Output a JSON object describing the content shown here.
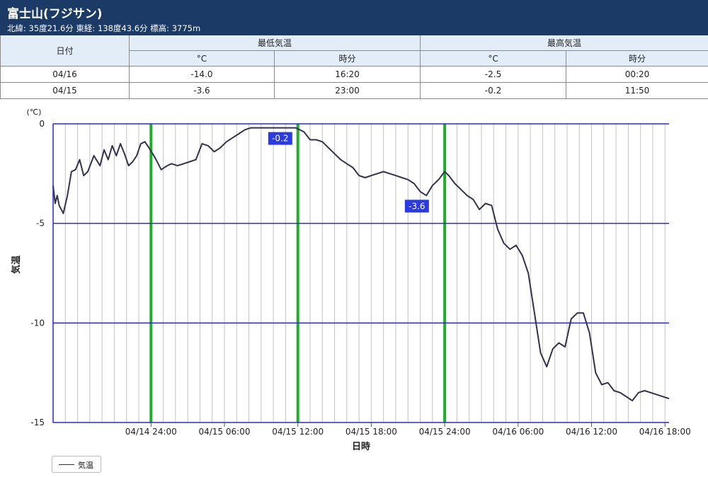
{
  "header": {
    "title": "富士山(フジサン)",
    "subtitle": "北緯: 35度21.6分 東経: 138度43.6分 標高: 3775m"
  },
  "table": {
    "date_header": "日付",
    "min_header": "最低気温",
    "max_header": "最高気温",
    "temp_sub": "°C",
    "time_sub": "時分",
    "rows": [
      {
        "date": "04/16",
        "min_temp": "-14.0",
        "min_time": "16:20",
        "max_temp": "-2.5",
        "max_time": "00:20"
      },
      {
        "date": "04/15",
        "min_temp": "-3.6",
        "min_time": "23:00",
        "max_temp": "-0.2",
        "max_time": "11:50"
      }
    ]
  },
  "chart_data": {
    "type": "line",
    "xlabel": "日時",
    "ylabel": "気温",
    "yunit": "(℃)",
    "ylim": [
      -15,
      0
    ],
    "yticks": [
      0,
      -5,
      -10,
      -15
    ],
    "xlim": [
      "04/14 16:00",
      "04/16 18:20"
    ],
    "xticks": [
      "04/14 24:00",
      "04/15 06:00",
      "04/15 12:00",
      "04/15 18:00",
      "04/15 24:00",
      "04/16 06:00",
      "04/16 12:00",
      "04/16 18:00"
    ],
    "grid": true,
    "legend": "bottom-left",
    "day_boundaries": [
      "04/14 24:00",
      "04/15 12:00",
      "04/15 24:00"
    ],
    "annotations": [
      {
        "x": "04/15 11:50",
        "y": -0.2,
        "label": "-0.2"
      },
      {
        "x": "04/15 23:00",
        "y": -3.6,
        "label": "-3.6"
      }
    ],
    "colors": {
      "line": "#33334d",
      "axis": "#2b2bc4",
      "marker": "#1fae2a",
      "label_bg": "#2b3be0"
    },
    "series": [
      {
        "name": "気温",
        "x": [
          "04/14 16:00",
          "04/14 16:10",
          "04/14 16:20",
          "04/14 16:30",
          "04/14 16:50",
          "04/14 17:10",
          "04/14 17:30",
          "04/14 17:50",
          "04/14 18:10",
          "04/14 18:30",
          "04/14 18:50",
          "04/14 19:20",
          "04/14 19:50",
          "04/14 20:10",
          "04/14 20:30",
          "04/14 20:50",
          "04/14 21:10",
          "04/14 21:30",
          "04/14 21:50",
          "04/14 22:10",
          "04/14 22:30",
          "04/14 22:50",
          "04/14 23:10",
          "04/14 23:30",
          "04/14 23:50",
          "04/15 00:20",
          "04/15 00:50",
          "04/15 01:20",
          "04/15 01:40",
          "04/15 02:10",
          "04/15 02:40",
          "04/15 03:10",
          "04/15 03:40",
          "04/15 04:10",
          "04/15 04:40",
          "04/15 05:10",
          "04/15 05:40",
          "04/15 06:10",
          "04/15 06:40",
          "04/15 07:10",
          "04/15 07:40",
          "04/15 08:10",
          "04/15 08:40",
          "04/15 09:10",
          "04/15 09:40",
          "04/15 10:10",
          "04/15 10:40",
          "04/15 11:10",
          "04/15 11:50",
          "04/15 12:30",
          "04/15 13:00",
          "04/15 13:30",
          "04/15 14:00",
          "04/15 14:30",
          "04/15 15:00",
          "04/15 15:30",
          "04/15 16:00",
          "04/15 16:30",
          "04/15 17:00",
          "04/15 17:30",
          "04/15 18:00",
          "04/15 18:30",
          "04/15 19:00",
          "04/15 19:30",
          "04/15 20:00",
          "04/15 20:30",
          "04/15 21:00",
          "04/15 21:30",
          "04/15 22:00",
          "04/15 22:30",
          "04/15 23:00",
          "04/15 23:30",
          "04/16 00:00",
          "04/16 00:20",
          "04/16 00:50",
          "04/16 01:20",
          "04/16 01:50",
          "04/16 02:20",
          "04/16 02:50",
          "04/16 03:20",
          "04/16 03:50",
          "04/16 04:20",
          "04/16 04:50",
          "04/16 05:20",
          "04/16 05:50",
          "04/16 06:20",
          "04/16 06:50",
          "04/16 07:20",
          "04/16 07:50",
          "04/16 08:20",
          "04/16 08:50",
          "04/16 09:20",
          "04/16 09:50",
          "04/16 10:20",
          "04/16 10:50",
          "04/16 11:20",
          "04/16 11:50",
          "04/16 12:20",
          "04/16 12:50",
          "04/16 13:20",
          "04/16 13:50",
          "04/16 14:20",
          "04/16 14:50",
          "04/16 15:20",
          "04/16 15:50",
          "04/16 16:20",
          "04/16 16:50",
          "04/16 17:20",
          "04/16 17:50",
          "04/16 18:20"
        ],
        "values": [
          -3.1,
          -4.0,
          -3.6,
          -4.1,
          -4.5,
          -3.6,
          -2.4,
          -2.3,
          -1.8,
          -2.6,
          -2.4,
          -1.6,
          -2.1,
          -1.3,
          -1.8,
          -1.1,
          -1.6,
          -1.0,
          -1.5,
          -2.1,
          -1.9,
          -1.6,
          -1.0,
          -0.9,
          -1.2,
          -1.7,
          -2.3,
          -2.1,
          -2.0,
          -2.1,
          -2.0,
          -1.9,
          -1.8,
          -1.0,
          -1.1,
          -1.4,
          -1.2,
          -0.9,
          -0.7,
          -0.5,
          -0.3,
          -0.2,
          -0.2,
          -0.2,
          -0.2,
          -0.2,
          -0.2,
          -0.2,
          -0.2,
          -0.4,
          -0.8,
          -0.8,
          -0.9,
          -1.2,
          -1.5,
          -1.8,
          -2.0,
          -2.2,
          -2.6,
          -2.7,
          -2.6,
          -2.5,
          -2.4,
          -2.5,
          -2.6,
          -2.7,
          -2.8,
          -3.0,
          -3.4,
          -3.6,
          -3.1,
          -2.8,
          -2.4,
          -2.6,
          -3.0,
          -3.3,
          -3.6,
          -3.8,
          -4.3,
          -4.0,
          -4.1,
          -5.3,
          -6.0,
          -6.3,
          -6.1,
          -6.6,
          -7.5,
          -9.5,
          -11.5,
          -12.2,
          -11.3,
          -11.0,
          -11.2,
          -9.8,
          -9.5,
          -9.5,
          -10.5,
          -12.5,
          -13.1,
          -13.0,
          -13.4,
          -13.5,
          -13.7,
          -13.9,
          -13.5,
          -13.4,
          -13.5,
          -13.6,
          -13.7,
          -13.8
        ]
      }
    ]
  },
  "legend": {
    "label": "気温"
  }
}
